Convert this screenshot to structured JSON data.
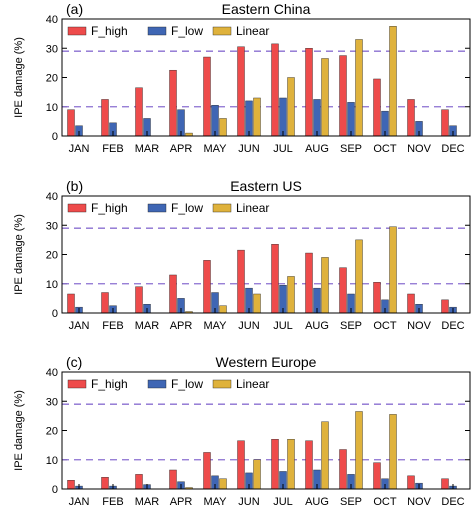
{
  "chart_data": [
    {
      "type": "bar",
      "panel_label": "(a)",
      "title": "Eastern China",
      "ylabel": "IPE damage (%)",
      "ylim": [
        0,
        40
      ],
      "yticks": [
        0,
        10,
        20,
        30,
        40
      ],
      "reference_lines": [
        10,
        29
      ],
      "legend_position": "top-left",
      "categories": [
        "JAN",
        "FEB",
        "MAR",
        "APR",
        "MAY",
        "JUN",
        "JUL",
        "AUG",
        "SEP",
        "OCT",
        "NOV",
        "DEC"
      ],
      "series": [
        {
          "name": "F_high",
          "color": "#ee4b4b",
          "values": [
            9.0,
            12.5,
            16.5,
            22.5,
            27.0,
            30.5,
            31.5,
            30.0,
            27.5,
            19.5,
            12.5,
            9.0
          ]
        },
        {
          "name": "F_low",
          "color": "#3f66b4",
          "values": [
            3.5,
            4.5,
            6.0,
            9.0,
            10.5,
            12.0,
            13.0,
            12.5,
            11.5,
            8.5,
            5.0,
            3.5
          ]
        },
        {
          "name": "Linear",
          "color": "#dfb23c",
          "values": [
            0.0,
            0.0,
            0.0,
            1.0,
            6.0,
            13.0,
            20.0,
            26.5,
            33.0,
            37.5,
            0.0,
            0.0
          ]
        }
      ]
    },
    {
      "type": "bar",
      "panel_label": "(b)",
      "title": "Eastern US",
      "ylabel": "IPE damage (%)",
      "ylim": [
        0,
        40
      ],
      "yticks": [
        0,
        10,
        20,
        30,
        40
      ],
      "reference_lines": [
        10,
        29
      ],
      "legend_position": "top-left",
      "categories": [
        "JAN",
        "FEB",
        "MAR",
        "APR",
        "MAY",
        "JUN",
        "JUL",
        "AUG",
        "SEP",
        "OCT",
        "NOV",
        "DEC"
      ],
      "series": [
        {
          "name": "F_high",
          "color": "#ee4b4b",
          "values": [
            6.5,
            7.0,
            9.0,
            13.0,
            18.0,
            21.5,
            23.5,
            20.5,
            15.5,
            10.5,
            6.5,
            4.5
          ]
        },
        {
          "name": "F_low",
          "color": "#3f66b4",
          "values": [
            2.0,
            2.5,
            3.0,
            5.0,
            7.0,
            8.5,
            9.5,
            8.5,
            6.5,
            4.5,
            3.0,
            2.0
          ]
        },
        {
          "name": "Linear",
          "color": "#dfb23c",
          "values": [
            0.0,
            0.0,
            0.0,
            0.5,
            2.5,
            6.5,
            12.5,
            19.0,
            25.0,
            29.5,
            0.0,
            0.0
          ]
        }
      ]
    },
    {
      "type": "bar",
      "panel_label": "(c)",
      "title": "Western Europe",
      "ylabel": "IPE damage (%)",
      "ylim": [
        0,
        40
      ],
      "yticks": [
        0,
        10,
        20,
        30,
        40
      ],
      "reference_lines": [
        10,
        29
      ],
      "legend_position": "top-left",
      "categories": [
        "JAN",
        "FEB",
        "MAR",
        "APR",
        "MAY",
        "JUN",
        "JUL",
        "AUG",
        "SEP",
        "OCT",
        "NOV",
        "DEC"
      ],
      "series": [
        {
          "name": "F_high",
          "color": "#ee4b4b",
          "values": [
            3.0,
            4.0,
            5.0,
            6.5,
            12.5,
            16.5,
            17.0,
            16.5,
            13.5,
            9.0,
            4.5,
            3.5
          ]
        },
        {
          "name": "F_low",
          "color": "#3f66b4",
          "values": [
            1.0,
            1.0,
            1.5,
            2.5,
            4.5,
            5.5,
            6.0,
            6.5,
            5.0,
            3.5,
            2.0,
            1.0
          ]
        },
        {
          "name": "Linear",
          "color": "#dfb23c",
          "values": [
            0.0,
            0.0,
            0.0,
            0.5,
            3.5,
            10.0,
            17.0,
            23.0,
            26.5,
            25.5,
            0.0,
            0.0
          ]
        }
      ]
    }
  ],
  "colors": {
    "reference_line": "#8a6fd1",
    "axis": "#000000"
  }
}
